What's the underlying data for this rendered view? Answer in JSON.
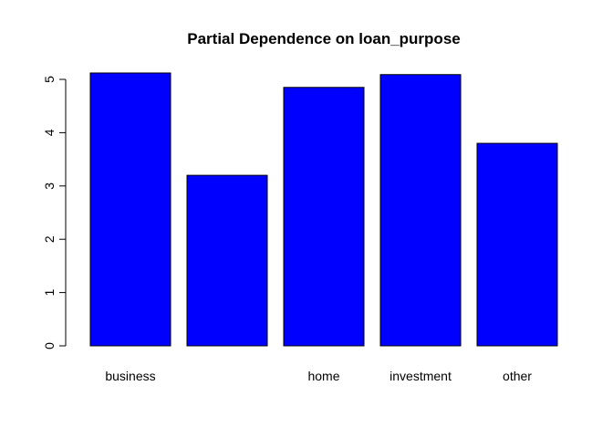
{
  "chart_data": {
    "type": "bar",
    "title": "Partial Dependence on loan_purpose",
    "xlabel": "",
    "ylabel": "",
    "categories": [
      "business",
      "",
      "home",
      "investment",
      "other"
    ],
    "values": [
      5.12,
      3.2,
      4.85,
      5.09,
      3.8
    ],
    "ylim": [
      0,
      5
    ],
    "yticks": [
      "0",
      "1",
      "2",
      "3",
      "4",
      "5"
    ],
    "bar_color": "#0000ff",
    "grid": false,
    "legend": "none"
  }
}
